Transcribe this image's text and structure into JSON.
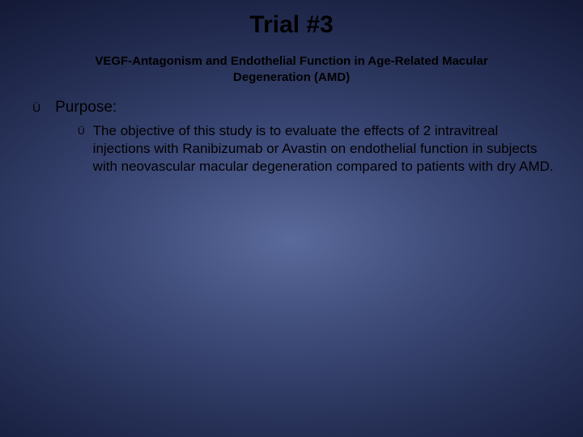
{
  "colors": {
    "title": "#000000",
    "subtitle": "#000000",
    "body_text": "#000000",
    "bullet": "#000000",
    "bg_center": "#5a6a9a",
    "bg_edge": "#050814"
  },
  "typography": {
    "title_fontsize": 30,
    "subtitle_fontsize": 15,
    "level1_fontsize": 19,
    "level2_fontsize": 17,
    "font_family": "Arial"
  },
  "slide": {
    "type": "presentation-slide",
    "title": "Trial #3",
    "subtitle": "VEGF-Antagonism and Endothelial Function in Age-Related Macular Degeneration (AMD)",
    "bullets": [
      {
        "glyph": "Ü",
        "text": "Purpose:",
        "children": [
          {
            "glyph": "Ü",
            "text": "The objective of this study is to evaluate the effects of 2 intravitreal injections with Ranibizumab or Avastin on endothelial function in subjects with neovascular macular degeneration compared to patients with dry AMD."
          }
        ]
      }
    ]
  }
}
